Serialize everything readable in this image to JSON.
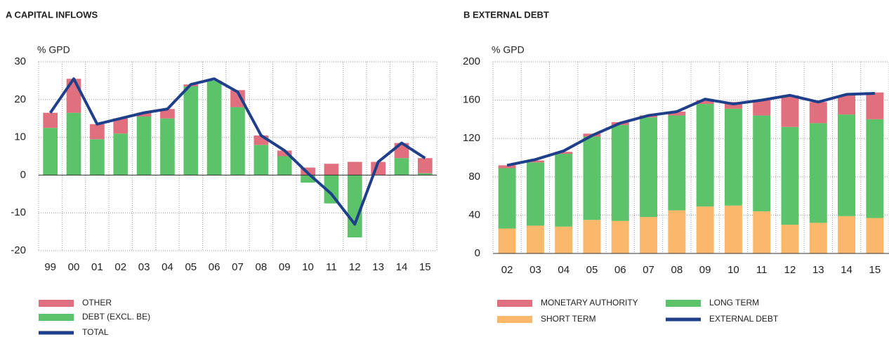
{
  "chart_data": [
    {
      "type": "bar",
      "title": "A  CAPITAL INFLOWS",
      "ylabel": "% GPD",
      "categories": [
        "99",
        "00",
        "01",
        "02",
        "03",
        "04",
        "05",
        "06",
        "07",
        "08",
        "09",
        "10",
        "11",
        "12",
        "13",
        "14",
        "15"
      ],
      "series": [
        {
          "name": "DEBT (EXCL. BE)",
          "color": "#5cc36b",
          "type": "bar",
          "values": [
            12.5,
            16.5,
            9.5,
            11,
            15.5,
            15,
            23.5,
            25,
            18,
            8,
            5,
            -2,
            -7.5,
            -16.5,
            0,
            4.5,
            0.5
          ]
        },
        {
          "name": "OTHER",
          "color": "#e0707d",
          "type": "bar",
          "values": [
            4,
            9,
            4,
            4,
            1,
            2.5,
            0.5,
            0,
            4.5,
            2.5,
            1.5,
            2,
            3,
            3.5,
            3.5,
            4,
            4
          ]
        },
        {
          "name": "TOTAL",
          "color": "#1f3f8a",
          "type": "line",
          "values": [
            16.5,
            25.5,
            13.5,
            15,
            16.5,
            17.5,
            24,
            25.5,
            22,
            10.5,
            6.5,
            0.5,
            -5,
            -13,
            3.5,
            8.5,
            4.5
          ]
        }
      ],
      "ylim": [
        -20,
        30
      ],
      "yticks": [
        -20,
        -10,
        0,
        10,
        20,
        30
      ],
      "grid": true
    },
    {
      "type": "bar",
      "title": "B  EXTERNAL DEBT",
      "ylabel": "% GPD",
      "categories": [
        "02",
        "03",
        "04",
        "05",
        "06",
        "07",
        "08",
        "09",
        "10",
        "11",
        "12",
        "13",
        "14",
        "15"
      ],
      "series": [
        {
          "name": "SHORT TERM",
          "color": "#fbb86b",
          "type": "bar",
          "values": [
            26,
            29,
            28,
            35,
            34,
            38,
            45,
            49,
            50,
            44,
            30,
            32,
            39,
            37
          ]
        },
        {
          "name": "LONG TERM",
          "color": "#5cc36b",
          "type": "bar",
          "values": [
            63,
            66,
            76,
            87,
            100,
            104,
            99,
            107,
            101,
            100,
            102,
            104,
            106,
            103
          ]
        },
        {
          "name": "MONETARY AUTHORITY",
          "color": "#e0707d",
          "type": "bar",
          "values": [
            3,
            2,
            2,
            3,
            3,
            2,
            4,
            4,
            7,
            16,
            33,
            22,
            20,
            28
          ]
        },
        {
          "name": "EXTERNAL DEBT",
          "color": "#1f3f8a",
          "type": "line",
          "values": [
            92,
            98,
            107,
            123,
            136,
            144,
            148,
            161,
            156,
            160,
            165,
            158,
            166,
            167
          ]
        }
      ],
      "ylim": [
        0,
        200
      ],
      "yticks": [
        0,
        40,
        80,
        120,
        160,
        200
      ],
      "grid": true
    }
  ]
}
